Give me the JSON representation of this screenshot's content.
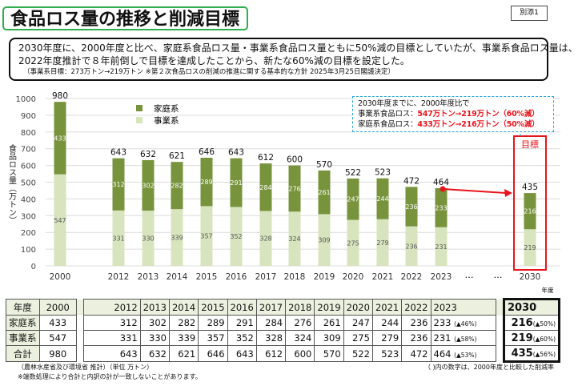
{
  "title": "食品ロス量の推移と削減目標",
  "tag": "別添1",
  "description": {
    "line1": "2030年度に、2000年度と比べ、家庭系食品ロス量・事業系食品ロス量ともに50%減の目標としていたが、事業系食品ロス量は、",
    "line2": "2022年度推計で８年前倒しで目標を達成したことから、新たな60%減の目標を設定した。",
    "line3": "（事業系目標：273万トン→219万トン ※第２次食品ロスの削減の推進に関する基本的な方針 2025年3月25日閣議決定）"
  },
  "callout": {
    "line1": "2030年度までに、2000年度比で",
    "business_label": "事業系食品ロス：",
    "business_value": "547万トン→219万トン（60%減）",
    "household_label": "家庭系食品ロス：",
    "household_value": "433万トン→216万トン（50%減）"
  },
  "target_label": "目標",
  "chart_data": {
    "type": "bar",
    "stacked": true,
    "categories": [
      "2000",
      "2012",
      "2013",
      "2014",
      "2015",
      "2016",
      "2017",
      "2018",
      "2019",
      "2020",
      "2021",
      "2022",
      "2023",
      "2030"
    ],
    "series": [
      {
        "name": "事業系",
        "color": "#d7e4bd",
        "values": [
          547,
          331,
          330,
          339,
          357,
          352,
          328,
          324,
          309,
          275,
          279,
          236,
          231,
          219
        ]
      },
      {
        "name": "家庭系",
        "color": "#77933c",
        "values": [
          433,
          312,
          302,
          282,
          289,
          291,
          284,
          276,
          261,
          247,
          244,
          236,
          233,
          216
        ]
      }
    ],
    "totals": [
      980,
      643,
      632,
      621,
      646,
      643,
      612,
      600,
      570,
      522,
      523,
      472,
      464,
      435
    ],
    "ylabel": "食品ロス量（万トン）",
    "xlabel": "年度",
    "ylim": [
      0,
      1000
    ],
    "yticks": [
      0,
      100,
      200,
      300,
      400,
      500,
      600,
      700,
      800,
      900,
      1000
    ],
    "grid": true,
    "legend": "top-left",
    "ellipsis": "…"
  },
  "table": {
    "header": [
      "年度",
      "2000",
      "2012",
      "2013",
      "2014",
      "2015",
      "2016",
      "2017",
      "2018",
      "2019",
      "2020",
      "2021",
      "2022",
      "2023",
      "2030"
    ],
    "rows": [
      {
        "label": "家庭系",
        "values": [
          "433",
          "312",
          "302",
          "282",
          "289",
          "291",
          "284",
          "276",
          "261",
          "247",
          "244",
          "236",
          "233"
        ],
        "pct2023": "(▲46%)",
        "v2030": "216",
        "pct2030": "(▲50%)"
      },
      {
        "label": "事業系",
        "values": [
          "547",
          "331",
          "330",
          "339",
          "357",
          "352",
          "328",
          "324",
          "309",
          "275",
          "279",
          "236",
          "231"
        ],
        "pct2023": "(▲58%)",
        "v2030": "219",
        "pct2030": "(▲60%)"
      },
      {
        "label": "合計",
        "values": [
          "980",
          "643",
          "632",
          "621",
          "646",
          "643",
          "612",
          "600",
          "570",
          "522",
          "523",
          "472",
          "464"
        ],
        "pct2023": "(▲53%)",
        "v2030": "435",
        "pct2030": "(▲56%)"
      }
    ]
  },
  "footnotes": {
    "source": "（農林水産省及び環境省 推計）（単位 万トン）",
    "rounding": "※端数処理により合計と内訳の計が一致しないことがあります。",
    "pct_note": "（ )内の数字は、2000年度と比較した削減率"
  }
}
